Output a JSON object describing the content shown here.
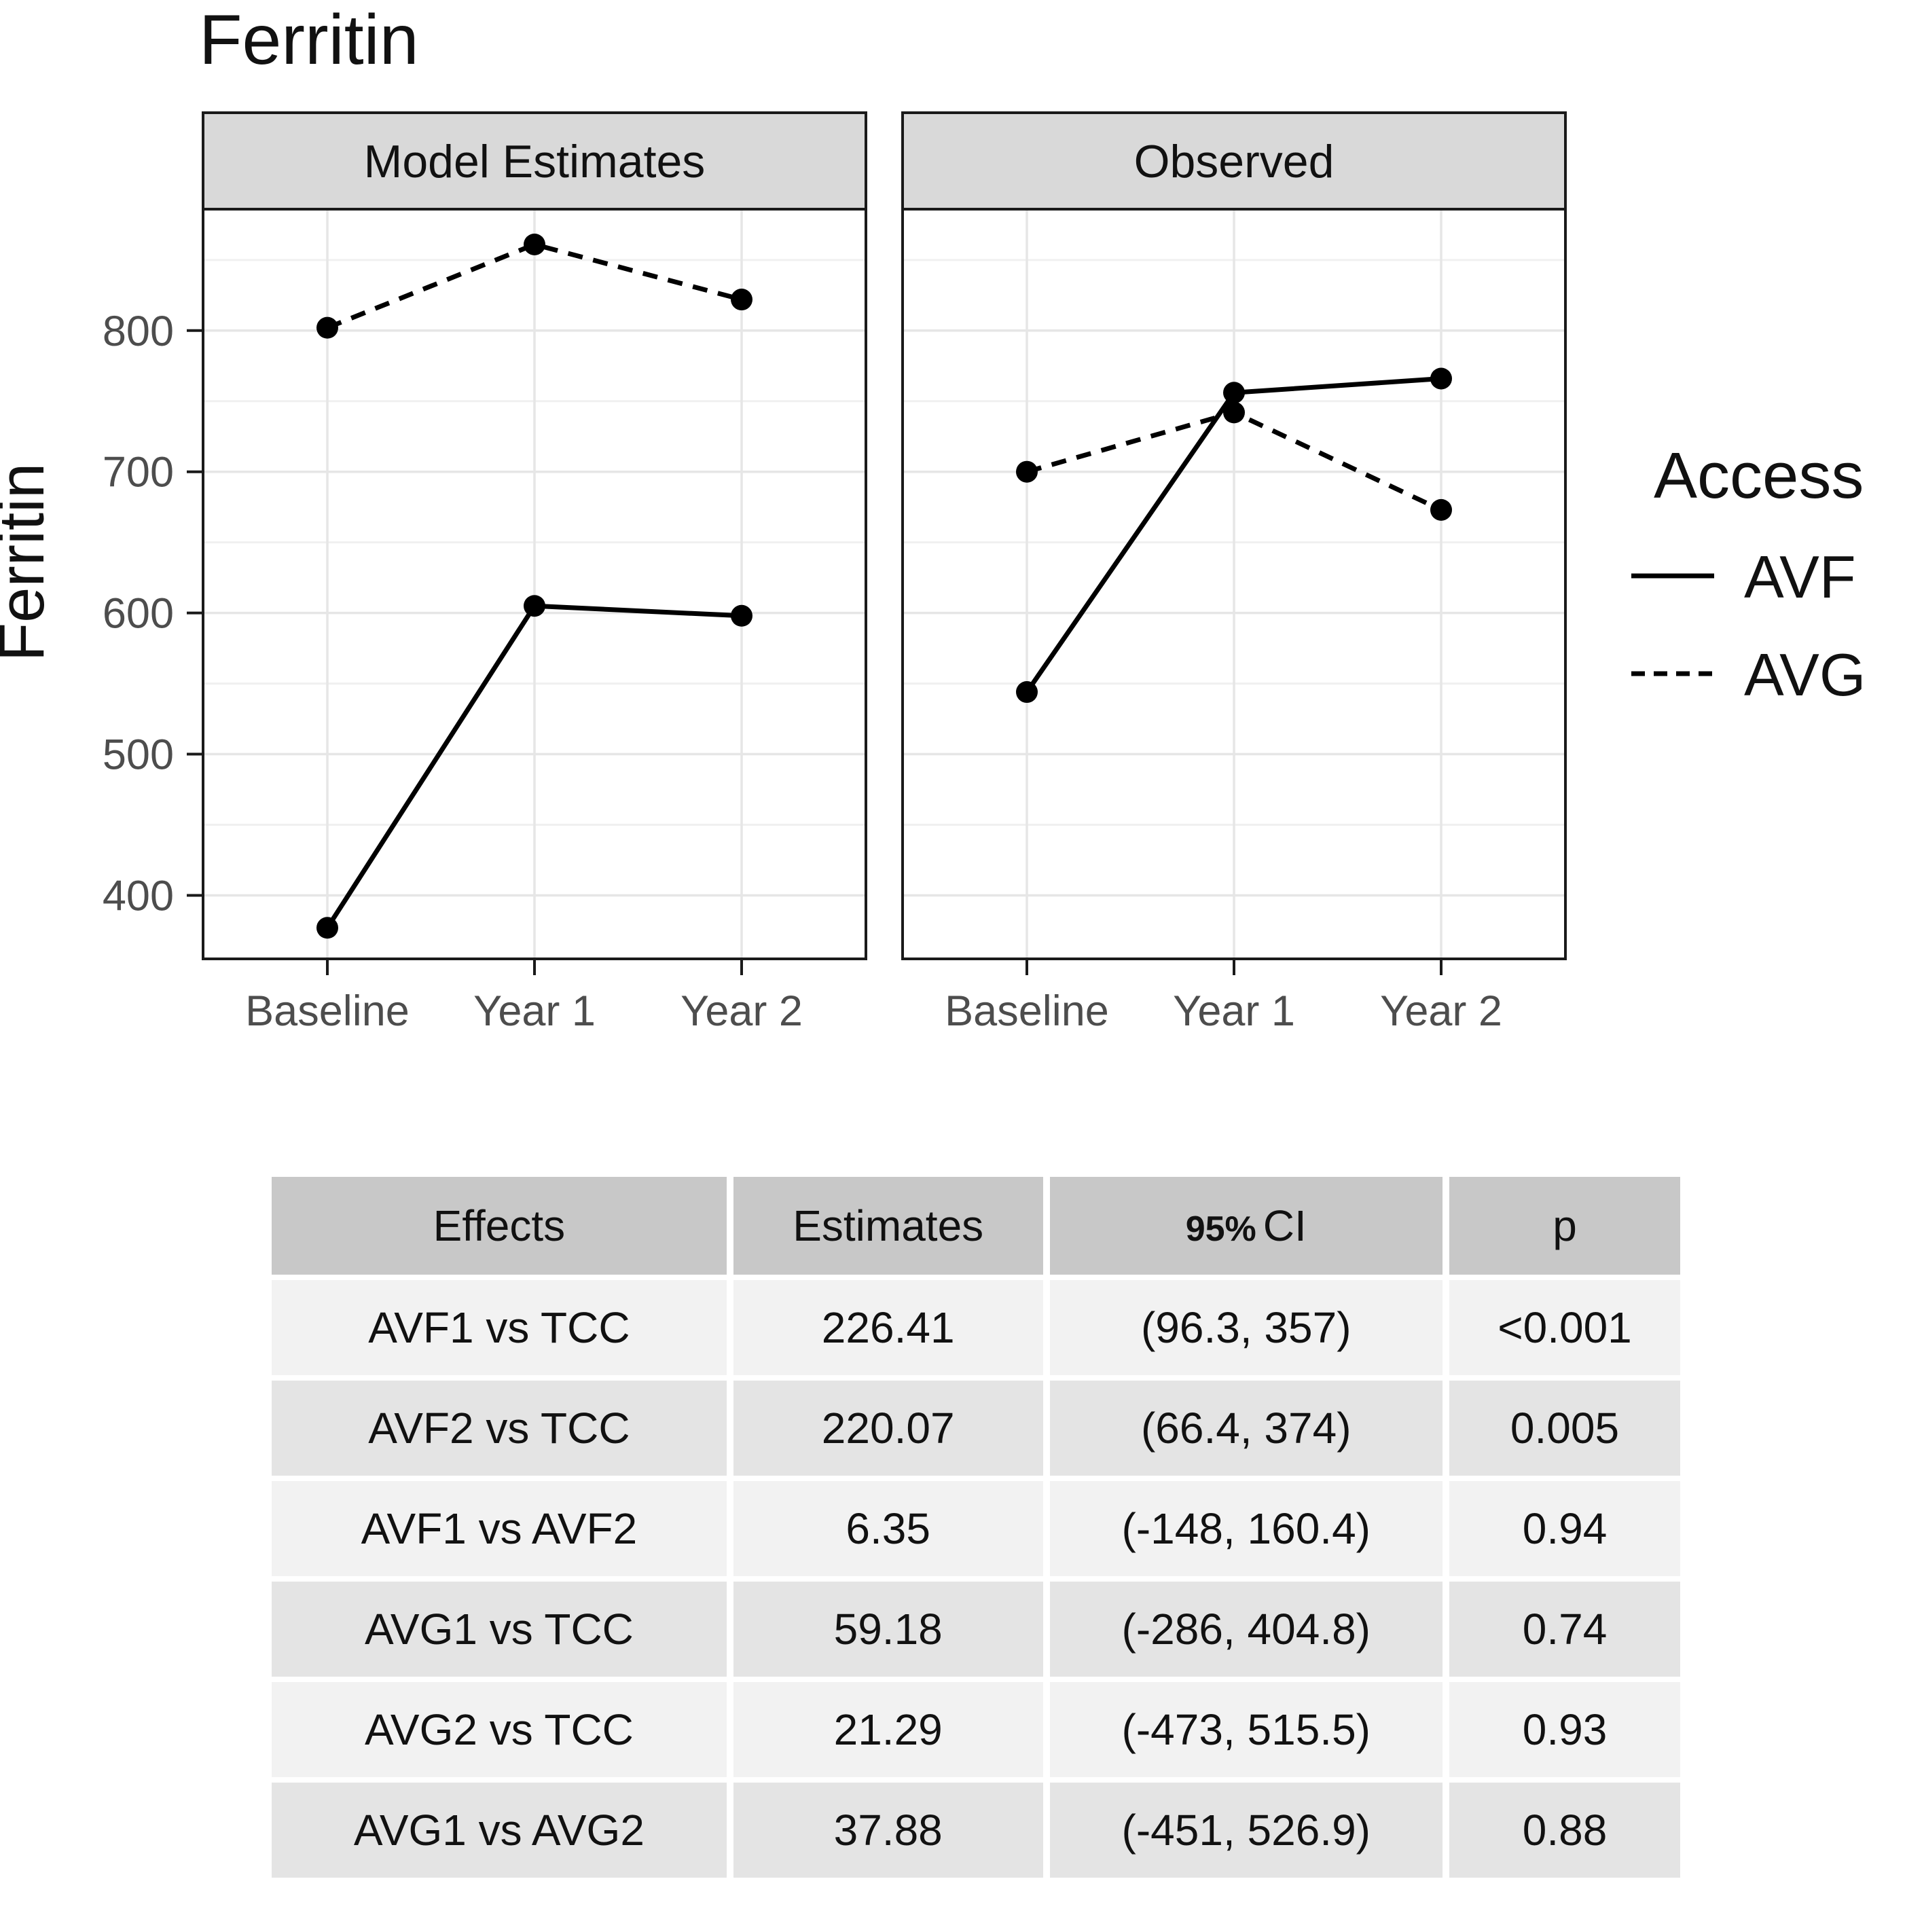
{
  "title": "Ferritin",
  "chart_data": {
    "type": "line",
    "title": "Ferritin",
    "ylabel": "Ferritin",
    "xlabel": "",
    "categories": [
      "Baseline",
      "Year 1",
      "Year 2"
    ],
    "facets": [
      {
        "label": "Model Estimates",
        "series": [
          {
            "name": "AVF",
            "linetype": "solid",
            "values": [
              377,
              605,
              598
            ]
          },
          {
            "name": "AVG",
            "linetype": "dashed",
            "values": [
              802,
              861,
              822
            ]
          }
        ]
      },
      {
        "label": "Observed",
        "series": [
          {
            "name": "AVF",
            "linetype": "solid",
            "values": [
              544,
              756,
              766
            ]
          },
          {
            "name": "AVG",
            "linetype": "dashed",
            "values": [
              700,
              742,
              673
            ]
          }
        ]
      }
    ],
    "yticks": [
      400,
      500,
      600,
      700,
      800
    ],
    "ylim": [
      355,
      886
    ],
    "grid": true,
    "legend": {
      "title": "Access",
      "position": "right",
      "entries": [
        {
          "label": "AVF",
          "linetype": "solid"
        },
        {
          "label": "AVG",
          "linetype": "dashed"
        }
      ]
    }
  },
  "table": {
    "headers": [
      {
        "text": "Effects"
      },
      {
        "text": "Estimates"
      },
      {
        "small": "95%",
        "text": "CI"
      },
      {
        "text": "p"
      }
    ],
    "rows": [
      [
        "AVF1 vs TCC",
        "226.41",
        "(96.3, 357)",
        "<0.001"
      ],
      [
        "AVF2 vs TCC",
        "220.07",
        "(66.4, 374)",
        "0.005"
      ],
      [
        "AVF1 vs AVF2",
        "6.35",
        "(-148, 160.4)",
        "0.94"
      ],
      [
        "AVG1 vs TCC",
        "59.18",
        "(-286, 404.8)",
        "0.74"
      ],
      [
        "AVG2 vs TCC",
        "21.29",
        "(-473, 515.5)",
        "0.93"
      ],
      [
        "AVG1 vs AVG2",
        "37.88",
        "(-451, 526.9)",
        "0.88"
      ]
    ]
  },
  "colors": {
    "series": "#000000",
    "strip_bg": "#d9d9d9",
    "panel_bg": "#ffffff",
    "panel_border": "#1a1a1a",
    "grid_major": "#e6e6e6",
    "grid_minor": "#f0f0f0",
    "axis_text": "#4d4d4d",
    "text": "#111111",
    "table_header_bg": "#c8c8c8",
    "table_row_odd": "#f2f2f2",
    "table_row_even": "#e4e4e4"
  }
}
